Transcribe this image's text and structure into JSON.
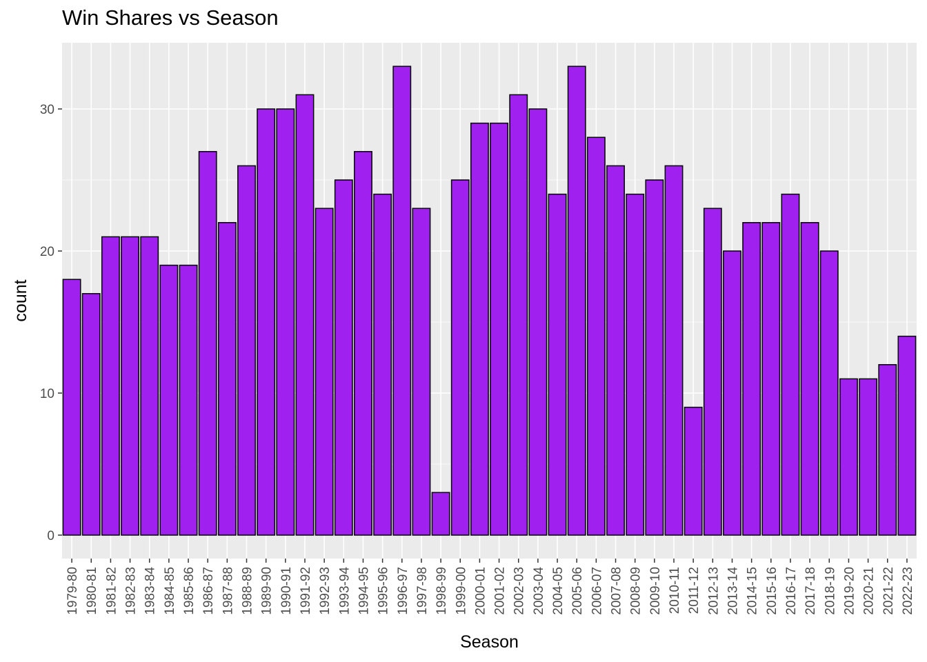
{
  "chart_data": {
    "type": "bar",
    "title": "Win Shares vs Season",
    "xlabel": "Season",
    "ylabel": "count",
    "categories": [
      "1979-80",
      "1980-81",
      "1981-82",
      "1982-83",
      "1983-84",
      "1984-85",
      "1985-86",
      "1986-87",
      "1987-88",
      "1988-89",
      "1989-90",
      "1990-91",
      "1991-92",
      "1992-93",
      "1993-94",
      "1994-95",
      "1995-96",
      "1996-97",
      "1997-98",
      "1998-99",
      "1999-00",
      "2000-01",
      "2001-02",
      "2002-03",
      "2003-04",
      "2004-05",
      "2005-06",
      "2006-07",
      "2007-08",
      "2008-09",
      "2009-10",
      "2010-11",
      "2011-12",
      "2012-13",
      "2013-14",
      "2014-15",
      "2015-16",
      "2016-17",
      "2017-18",
      "2018-19",
      "2019-20",
      "2020-21",
      "2021-22",
      "2022-23"
    ],
    "values": [
      18,
      17,
      21,
      21,
      21,
      19,
      19,
      27,
      22,
      26,
      30,
      30,
      31,
      23,
      25,
      27,
      24,
      33,
      23,
      3,
      25,
      29,
      29,
      31,
      30,
      24,
      33,
      28,
      26,
      24,
      25,
      26,
      9,
      23,
      20,
      22,
      22,
      24,
      22,
      20,
      11,
      11,
      12,
      14
    ],
    "yticks": [
      0,
      10,
      20,
      30
    ],
    "ylim": [
      0,
      34.6
    ],
    "grid": true,
    "colors": {
      "bar_fill": "#a020f0",
      "bar_stroke": "#000000",
      "panel": "#ebebeb",
      "gridline": "#ffffff"
    }
  }
}
